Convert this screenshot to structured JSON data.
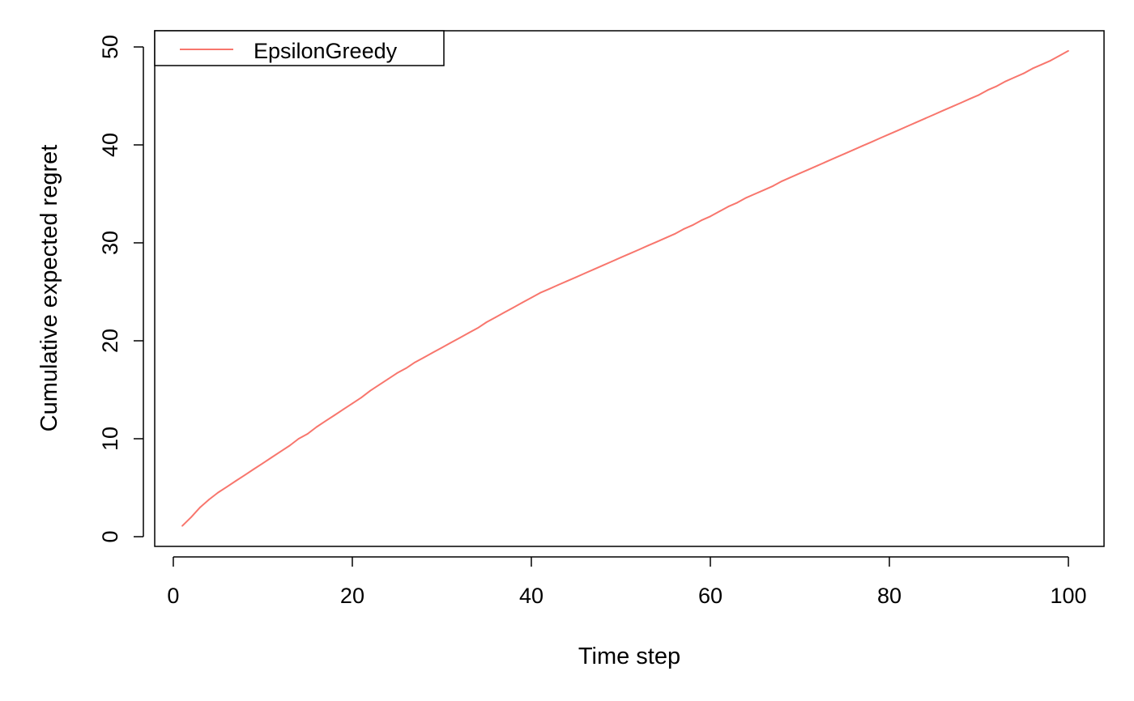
{
  "chart_data": {
    "type": "line",
    "title": "",
    "xlabel": "Time step",
    "ylabel": "Cumulative expected regret",
    "xlim": [
      1,
      100
    ],
    "ylim": [
      0,
      50
    ],
    "x_ticks": [
      0,
      20,
      40,
      60,
      80,
      100
    ],
    "y_ticks": [
      0,
      10,
      20,
      30,
      40,
      50
    ],
    "grid": false,
    "legend": {
      "position": "top-left",
      "entries": [
        {
          "name": "EpsilonGreedy",
          "color": "#F8766D"
        }
      ]
    },
    "series": [
      {
        "name": "EpsilonGreedy",
        "color": "#F8766D",
        "x": [
          1,
          2,
          3,
          4,
          5,
          6,
          7,
          8,
          9,
          10,
          11,
          12,
          13,
          14,
          15,
          16,
          17,
          18,
          19,
          20,
          21,
          22,
          23,
          24,
          25,
          26,
          27,
          28,
          29,
          30,
          31,
          32,
          33,
          34,
          35,
          36,
          37,
          38,
          39,
          40,
          41,
          42,
          43,
          44,
          45,
          46,
          47,
          48,
          49,
          50,
          51,
          52,
          53,
          54,
          55,
          56,
          57,
          58,
          59,
          60,
          61,
          62,
          63,
          64,
          65,
          66,
          67,
          68,
          69,
          70,
          71,
          72,
          73,
          74,
          75,
          76,
          77,
          78,
          79,
          80,
          81,
          82,
          83,
          84,
          85,
          86,
          87,
          88,
          89,
          90,
          91,
          92,
          93,
          94,
          95,
          96,
          97,
          98,
          99,
          100
        ],
        "values": [
          1.1,
          2.0,
          3.0,
          3.8,
          4.5,
          5.1,
          5.7,
          6.3,
          6.9,
          7.5,
          8.1,
          8.7,
          9.3,
          10.0,
          10.5,
          11.2,
          11.8,
          12.4,
          13.0,
          13.6,
          14.2,
          14.9,
          15.5,
          16.1,
          16.7,
          17.2,
          17.8,
          18.3,
          18.8,
          19.3,
          19.8,
          20.3,
          20.8,
          21.3,
          21.9,
          22.4,
          22.9,
          23.4,
          23.9,
          24.4,
          24.9,
          25.3,
          25.7,
          26.1,
          26.5,
          26.9,
          27.3,
          27.7,
          28.1,
          28.5,
          28.9,
          29.3,
          29.7,
          30.1,
          30.5,
          30.9,
          31.4,
          31.8,
          32.3,
          32.7,
          33.2,
          33.7,
          34.1,
          34.6,
          35.0,
          35.4,
          35.8,
          36.3,
          36.7,
          37.1,
          37.5,
          37.9,
          38.3,
          38.7,
          39.1,
          39.5,
          39.9,
          40.3,
          40.7,
          41.1,
          41.5,
          41.9,
          42.3,
          42.7,
          43.1,
          43.5,
          43.9,
          44.3,
          44.7,
          45.1,
          45.6,
          46.0,
          46.5,
          46.9,
          47.3,
          47.8,
          48.2,
          48.6,
          49.1,
          49.6
        ]
      }
    ]
  }
}
